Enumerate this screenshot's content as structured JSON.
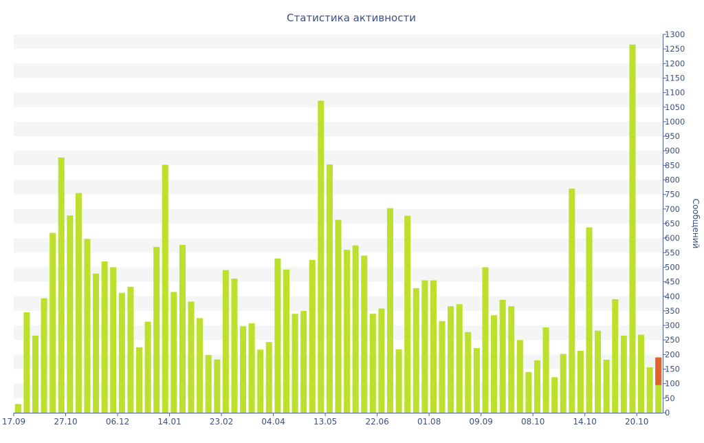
{
  "chart_data": {
    "type": "bar",
    "title": "Статистика активности",
    "xlabel": "",
    "ylabel": "Сообщений",
    "ylim": [
      0,
      1300
    ],
    "ytick_step": 50,
    "grid": "horizontal-bands",
    "x_tick_labels": [
      {
        "index": 0,
        "label": "17.09"
      },
      {
        "index": 6,
        "label": "27.10"
      },
      {
        "index": 12,
        "label": "06.12"
      },
      {
        "index": 18,
        "label": "14.01"
      },
      {
        "index": 24,
        "label": "23.02"
      },
      {
        "index": 30,
        "label": "04.04"
      },
      {
        "index": 36,
        "label": "13.05"
      },
      {
        "index": 42,
        "label": "22.06"
      },
      {
        "index": 48,
        "label": "01.08"
      },
      {
        "index": 54,
        "label": "09.09"
      },
      {
        "index": 60,
        "label": "08.10"
      },
      {
        "index": 66,
        "label": "14.10"
      },
      {
        "index": 72,
        "label": "20.10"
      }
    ],
    "values": [
      30,
      345,
      265,
      393,
      618,
      877,
      678,
      755,
      597,
      478,
      520,
      500,
      412,
      433,
      225,
      313,
      570,
      852,
      415,
      577,
      382,
      325,
      198,
      183,
      490,
      461,
      297,
      307,
      217,
      243,
      530,
      492,
      340,
      350,
      525,
      1072,
      853,
      663,
      560,
      575,
      540,
      340,
      358,
      703,
      218,
      677,
      428,
      455,
      455,
      315,
      366,
      373,
      277,
      222,
      500,
      335,
      388,
      366,
      250,
      140,
      180,
      293,
      122,
      202,
      770,
      213,
      637,
      282,
      182,
      390,
      265,
      1265,
      268,
      156,
      190
    ],
    "highlight": {
      "index": 74,
      "value": 190,
      "from": 95,
      "color": "#e2622c"
    },
    "colors": {
      "bar": "#bde02f",
      "highlight": "#e2622c",
      "axis": "#4b5fa3",
      "text": "#3d4f7e",
      "band": "#f5f5f5"
    }
  }
}
